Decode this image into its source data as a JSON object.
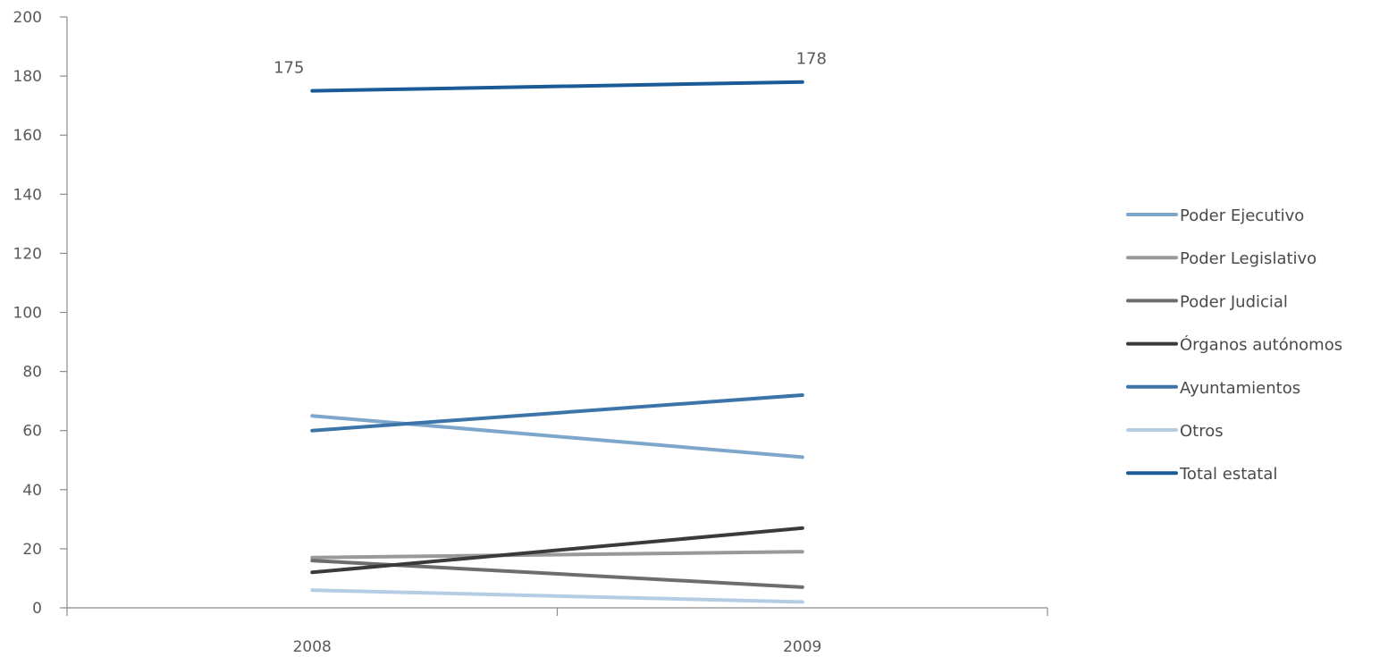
{
  "chart_data": {
    "type": "line",
    "title": "",
    "xlabel": "",
    "ylabel": "",
    "categories": [
      "2008",
      "2009"
    ],
    "ylim": [
      0,
      200
    ],
    "yticks": [
      0,
      20,
      40,
      60,
      80,
      100,
      120,
      140,
      160,
      180,
      200
    ],
    "ytick_labels": [
      "0",
      "20",
      "40",
      "60",
      "80",
      "100",
      "120",
      "140",
      "160",
      "180",
      "200"
    ],
    "grid": false,
    "legend_position": "right",
    "series": [
      {
        "name": "Poder Ejecutivo",
        "values": [
          65,
          51
        ],
        "color": "#7ea6cb"
      },
      {
        "name": "Poder Legislativo",
        "values": [
          17,
          19
        ],
        "color": "#999999"
      },
      {
        "name": "Poder Judicial",
        "values": [
          16,
          7
        ],
        "color": "#6d6d6d"
      },
      {
        "name": "Órganos autónomos",
        "values": [
          12,
          27
        ],
        "color": "#3a3a3a"
      },
      {
        "name": "Ayuntamientos",
        "values": [
          60,
          72
        ],
        "color": "#3c74a8"
      },
      {
        "name": "Otros",
        "values": [
          6,
          2
        ],
        "color": "#b4cde4"
      },
      {
        "name": "Total estatal",
        "values": [
          175,
          178
        ],
        "color": "#1a5a96"
      }
    ],
    "data_labels": [
      {
        "series": "Total estatal",
        "category": "2008",
        "text": "175"
      },
      {
        "series": "Total estatal",
        "category": "2009",
        "text": "178"
      }
    ]
  }
}
